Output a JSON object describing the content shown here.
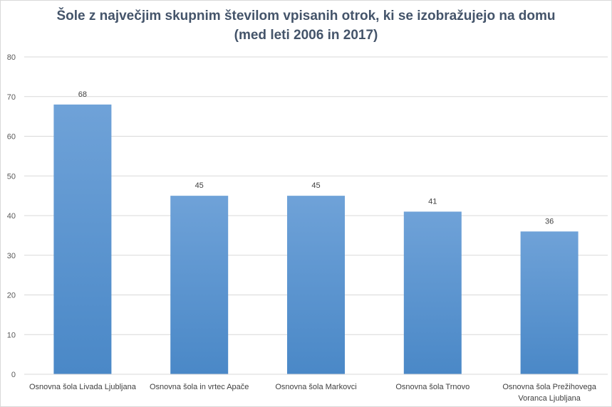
{
  "chart_data": {
    "type": "bar",
    "title_lines": [
      "Šole z največjim skupnim številom vpisanih otrok, ki se izobražujejo na domu",
      "(med leti 2006 in 2017)"
    ],
    "categories": [
      [
        "Osnovna šola Livada Ljubljana"
      ],
      [
        "Osnovna šola in vrtec Apače"
      ],
      [
        "Osnovna šola Markovci"
      ],
      [
        "Osnovna šola Trnovo"
      ],
      [
        "Osnovna šola Prežihovega",
        "Voranca Ljubljana"
      ]
    ],
    "values": [
      68,
      45,
      45,
      41,
      36
    ],
    "data_labels": [
      "68",
      "45",
      "45",
      "41",
      "36"
    ],
    "ylim": [
      0,
      80
    ],
    "yticks": [
      0,
      10,
      20,
      30,
      40,
      50,
      60,
      70,
      80
    ],
    "grid": true,
    "legend": "none",
    "bar_color_top": "#6fa2d8",
    "bar_color_bottom": "#4a88c7",
    "grid_color": "#d9d9d9"
  }
}
